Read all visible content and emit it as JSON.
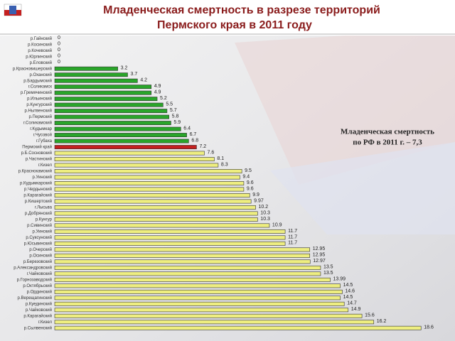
{
  "chart_data": {
    "type": "barh",
    "title": [
      "Младенческая смертность в разрезе территорий",
      "Пермского края в 2011 году"
    ],
    "annotation": [
      "Младенческая смертность",
      "по РФ в 2011 г. – 7,3"
    ],
    "categories": [
      "р.Гайнский",
      "р.Косинский",
      "р.Кочевский",
      "р.Юрлинский",
      "р.Еловский",
      "р.Красновишерский",
      "р.Оханский",
      "р.Бардымский",
      "г.Соликамск",
      "р.Гремячинский",
      "р.Ильинский",
      "р.Кунгурский",
      "р.Нытвенский",
      "р.Пермский",
      "г.Соликамский",
      "г.Кудымкар",
      "г.Чусовой",
      "г.Губаха",
      "Пермский край",
      "р.Б.Сосновский",
      "р.Частинский",
      "г.Кизел",
      "р.Краснокамский",
      "р.Уинский",
      "р.Кудымкарский",
      "р.Чердынский",
      "р.Карагайский",
      "р.Кишертский",
      "г.Лысьва",
      "р.Добрянский",
      "р.Кунгур",
      "р.Сивинский",
      "р.Уинский",
      "р.Суксунский",
      "р.Юсьвинский",
      "р.Очерский",
      "р.Осинский",
      "р.Березовский",
      "р.Александровский",
      "г.Чайковский",
      "р.Горнозаводский",
      "р.Октябрьский",
      "р.Ординский",
      "р.Верещагинский",
      "р.Куединский",
      "р.Чайковский",
      "р.Карагайский",
      "г.Кизел",
      "р.Сылвенский"
    ],
    "values": [
      0,
      0,
      0,
      0,
      0,
      3.2,
      3.7,
      4.2,
      4.9,
      4.9,
      5.2,
      5.5,
      5.7,
      5.8,
      5.9,
      6.4,
      6.7,
      6.8,
      7.2,
      7.6,
      8.1,
      8.3,
      9.5,
      9.4,
      9.6,
      9.6,
      9.9,
      9.97,
      10.2,
      10.3,
      10.3,
      10.9,
      11.7,
      11.7,
      11.7,
      12.95,
      12.95,
      12.97,
      13.5,
      13.5,
      13.99,
      14.5,
      14.6,
      14.5,
      14.7,
      14.9,
      15.6,
      16.2,
      18.6
    ],
    "colors": [
      "#2aa52a",
      "#2aa52a",
      "#2aa52a",
      "#2aa52a",
      "#2aa52a",
      "#2aa52a",
      "#2aa52a",
      "#2aa52a",
      "#2aa52a",
      "#2aa52a",
      "#2aa52a",
      "#2aa52a",
      "#2aa52a",
      "#2aa52a",
      "#2aa52a",
      "#2aa52a",
      "#2aa52a",
      "#2aa52a",
      "#c42020",
      "#eeee80",
      "#eeee80",
      "#eeee80",
      "#eeee80",
      "#eeee80",
      "#eeee80",
      "#eeee80",
      "#eeee80",
      "#eeee80",
      "#eeee80",
      "#eeee80",
      "#eeee80",
      "#eeee80",
      "#eeee80",
      "#eeee80",
      "#eeee80",
      "#eeee80",
      "#eeee80",
      "#eeee80",
      "#eeee80",
      "#eeee80",
      "#eeee80",
      "#eeee80",
      "#eeee80",
      "#eeee80",
      "#eeee80",
      "#eeee80",
      "#eeee80",
      "#eeee80",
      "#eeee80"
    ]
  }
}
